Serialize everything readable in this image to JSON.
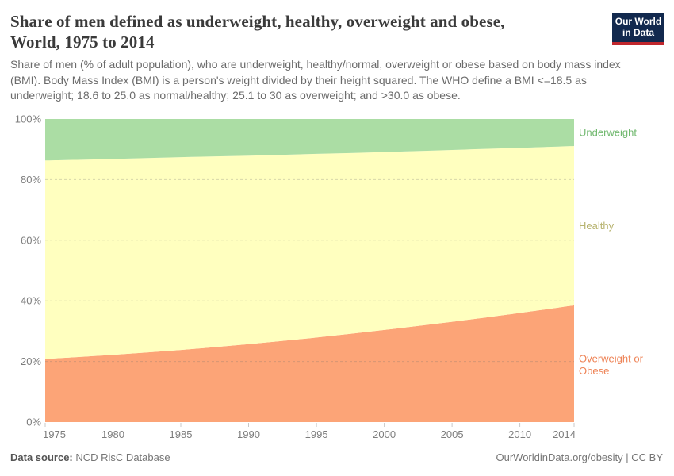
{
  "header": {
    "title_line1": "Share of men defined as underweight, healthy, overweight and obese,",
    "title_line2": "World, 1975 to 2014",
    "subtitle": "Share of men (% of adult population), who are underweight, healthy/normal, overweight or obese based on body mass index (BMI). Body Mass Index (BMI) is a person's weight divided by their height squared. The WHO define a BMI <=18.5 as underweight; 18.6 to 25.0 as normal/healthy; 25.1 to 30 as overweight; and >30.0 as obese.",
    "logo": {
      "line1": "Our World",
      "line2": "in Data",
      "bg_color": "#12294e",
      "accent_color": "#c0272d"
    }
  },
  "chart_data": {
    "type": "area",
    "stacked": true,
    "title": "Share of men defined as underweight, healthy, overweight and obese, World, 1975 to 2014",
    "xlabel": "",
    "ylabel": "",
    "xlim": [
      1975,
      2014
    ],
    "ylim": [
      0,
      100
    ],
    "grid": "horizontal-dashed",
    "legend_position": "right-of-plot",
    "x": [
      1975,
      1980,
      1985,
      1990,
      1995,
      2000,
      2005,
      2010,
      2014
    ],
    "series": [
      {
        "name": "Overweight or Obese",
        "label_lines": [
          "Overweight or",
          "Obese"
        ],
        "fill_color": "#fca477",
        "label_color": "#ee8356",
        "values": [
          20.8,
          22.2,
          23.8,
          25.7,
          27.9,
          30.4,
          33.1,
          36.0,
          38.5
        ]
      },
      {
        "name": "Healthy",
        "label_lines": [
          "Healthy"
        ],
        "fill_color": "#ffffbf",
        "label_color": "#b7b36f",
        "values": [
          65.5,
          64.6,
          63.6,
          62.2,
          60.6,
          58.7,
          56.7,
          54.5,
          52.6
        ]
      },
      {
        "name": "Underweight",
        "label_lines": [
          "Underweight"
        ],
        "fill_color": "#abdda4",
        "label_color": "#70b86e",
        "values": [
          13.7,
          13.2,
          12.6,
          12.1,
          11.5,
          10.9,
          10.2,
          9.5,
          8.9
        ]
      }
    ],
    "y_ticks": [
      {
        "v": 0,
        "label": "0%"
      },
      {
        "v": 20,
        "label": "20%"
      },
      {
        "v": 40,
        "label": "40%"
      },
      {
        "v": 60,
        "label": "60%"
      },
      {
        "v": 80,
        "label": "80%"
      },
      {
        "v": 100,
        "label": "100%"
      }
    ],
    "x_ticks": [
      {
        "v": 1975,
        "label": "1975"
      },
      {
        "v": 1980,
        "label": "1980"
      },
      {
        "v": 1985,
        "label": "1985"
      },
      {
        "v": 1990,
        "label": "1990"
      },
      {
        "v": 1995,
        "label": "1995"
      },
      {
        "v": 2000,
        "label": "2000"
      },
      {
        "v": 2005,
        "label": "2005"
      },
      {
        "v": 2010,
        "label": "2010"
      },
      {
        "v": 2014,
        "label": "2014"
      }
    ],
    "gridline_values": [
      20,
      40,
      60,
      80
    ]
  },
  "footer": {
    "datasource_label": "Data source:",
    "datasource_value": "NCD RisC Database",
    "license": "OurWorldinData.org/obesity | CC BY"
  }
}
